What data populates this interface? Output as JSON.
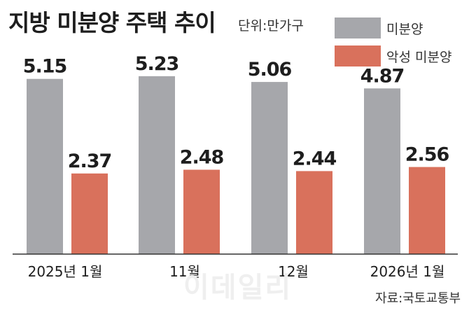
{
  "chart_data": {
    "type": "bar",
    "title": "지방 미분양 주택 추이",
    "unit": "단위:만가구",
    "categories": [
      "2025년 1월",
      "11월",
      "12월",
      "2026년 1월"
    ],
    "series": [
      {
        "name": "미분양",
        "color": "#a6a7ab",
        "values": [
          5.15,
          5.23,
          5.06,
          4.87
        ]
      },
      {
        "name": "악성 미분양",
        "color": "#d9715c",
        "values": [
          2.37,
          2.48,
          2.44,
          2.56
        ]
      }
    ],
    "value_labels": [
      [
        "5.15",
        "5.23",
        "5.06",
        "4.87"
      ],
      [
        "2.37",
        "2.48",
        "2.44",
        "2.56"
      ]
    ],
    "ylim": [
      0,
      6
    ],
    "grid": false,
    "legend_position": "top-right",
    "source": "자료:국토교통부"
  },
  "watermark": "이데일리"
}
